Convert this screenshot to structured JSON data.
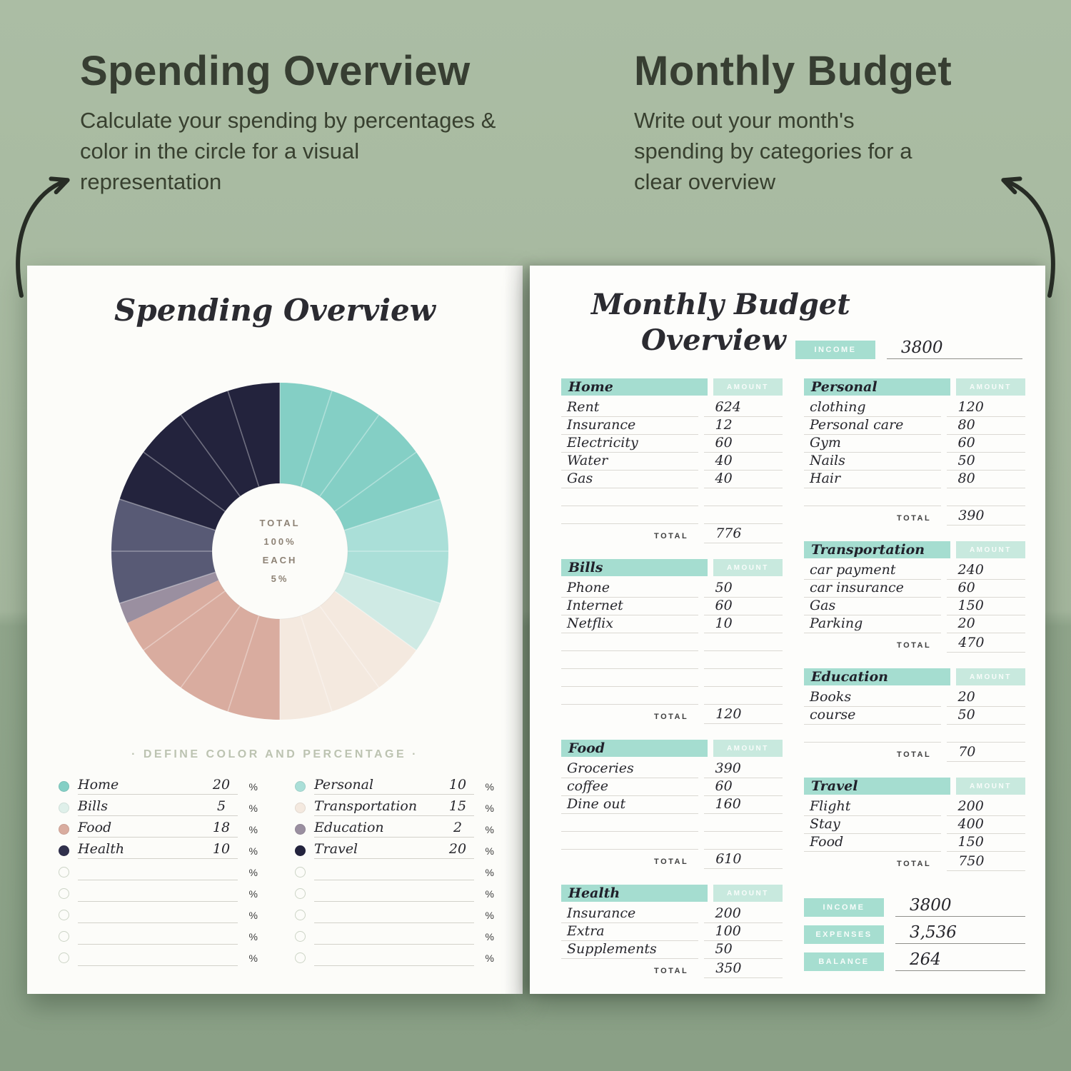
{
  "header_left": {
    "title": "Spending Overview",
    "subtitle": "Calculate your spending by percentages & color in the circle for a visual representation"
  },
  "header_right": {
    "title": "Monthly Budget",
    "subtitle": "Write out your month's spending by categories for a clear overview"
  },
  "left_page": {
    "title": "Spending Overview",
    "center_lines": [
      "TOTAL",
      "100%",
      "EACH",
      "5%"
    ],
    "define_label": "· DEFINE COLOR AND PERCENTAGE ·",
    "percent_sign": "%",
    "legend_columns": [
      {
        "rows": [
          {
            "label": "Home",
            "value": "20",
            "color": "#84cfc5"
          },
          {
            "label": "Bills",
            "value": "5",
            "color": "#dff0ea"
          },
          {
            "label": "Food",
            "value": "18",
            "color": "#d9ac9f"
          },
          {
            "label": "Health",
            "value": "10",
            "color": "#30304c"
          },
          {
            "label": "",
            "value": "",
            "color": ""
          },
          {
            "label": "",
            "value": "",
            "color": ""
          },
          {
            "label": "",
            "value": "",
            "color": ""
          },
          {
            "label": "",
            "value": "",
            "color": ""
          },
          {
            "label": "",
            "value": "",
            "color": ""
          }
        ]
      },
      {
        "rows": [
          {
            "label": "Personal",
            "value": "10",
            "color": "#aadfd8"
          },
          {
            "label": "Transportation",
            "value": "15",
            "color": "#f4e9df"
          },
          {
            "label": "Education",
            "value": "2",
            "color": "#9a8fa0"
          },
          {
            "label": "Travel",
            "value": "20",
            "color": "#23233d"
          },
          {
            "label": "",
            "value": "",
            "color": ""
          },
          {
            "label": "",
            "value": "",
            "color": ""
          },
          {
            "label": "",
            "value": "",
            "color": ""
          },
          {
            "label": "",
            "value": "",
            "color": ""
          },
          {
            "label": "",
            "value": "",
            "color": ""
          }
        ]
      }
    ]
  },
  "chart_data": {
    "type": "pie",
    "title": "Spending Overview",
    "categories": [
      "Home",
      "Personal",
      "Bills",
      "Transportation",
      "Food",
      "Education",
      "Health",
      "Travel"
    ],
    "values": [
      20,
      10,
      5,
      15,
      18,
      2,
      10,
      20
    ],
    "colors": [
      "#84cfc5",
      "#aadfd8",
      "#cfeae4",
      "#f4e9df",
      "#d9ac9f",
      "#9a8fa0",
      "#585a75",
      "#23233d"
    ],
    "units": "percent",
    "segments_grid": {
      "count": 20,
      "each_percent": 5
    },
    "center_text": [
      "TOTAL",
      "100%",
      "EACH",
      "5%"
    ],
    "legend_position": "below"
  },
  "right_page": {
    "title_line1": "Monthly Budget",
    "title_line2": "Overview",
    "amount_header": "AMOUNT",
    "total_label": "TOTAL",
    "income_top": {
      "label": "INCOME",
      "value": "3800"
    },
    "columns": [
      {
        "tables": [
          {
            "name": "Home",
            "rows": [
              [
                "Rent",
                "624"
              ],
              [
                "Insurance",
                "12"
              ],
              [
                "Electricity",
                "60"
              ],
              [
                "Water",
                "40"
              ],
              [
                "Gas",
                "40"
              ],
              [
                "",
                ""
              ],
              [
                "",
                ""
              ]
            ],
            "total": "776"
          },
          {
            "name": "Bills",
            "rows": [
              [
                "Phone",
                "50"
              ],
              [
                "Internet",
                "60"
              ],
              [
                "Netflix",
                "10"
              ],
              [
                "",
                ""
              ],
              [
                "",
                ""
              ],
              [
                "",
                ""
              ],
              [
                "",
                ""
              ]
            ],
            "total": "120"
          },
          {
            "name": "Food",
            "rows": [
              [
                "Groceries",
                "390"
              ],
              [
                "coffee",
                "60"
              ],
              [
                "Dine out",
                "160"
              ],
              [
                "",
                ""
              ],
              [
                "",
                ""
              ]
            ],
            "total": "610"
          },
          {
            "name": "Health",
            "rows": [
              [
                "Insurance",
                "200"
              ],
              [
                "Extra",
                "100"
              ],
              [
                "Supplements",
                "50"
              ]
            ],
            "total": "350"
          }
        ]
      },
      {
        "tables": [
          {
            "name": "Personal",
            "rows": [
              [
                "clothing",
                "120"
              ],
              [
                "Personal care",
                "80"
              ],
              [
                "Gym",
                "60"
              ],
              [
                "Nails",
                "50"
              ],
              [
                "Hair",
                "80"
              ],
              [
                "",
                ""
              ]
            ],
            "total": "390"
          },
          {
            "name": "Transportation",
            "rows": [
              [
                "car payment",
                "240"
              ],
              [
                "car insurance",
                "60"
              ],
              [
                "Gas",
                "150"
              ],
              [
                "Parking",
                "20"
              ]
            ],
            "total": "470"
          },
          {
            "name": "Education",
            "rows": [
              [
                "Books",
                "20"
              ],
              [
                "course",
                "50"
              ],
              [
                "",
                ""
              ]
            ],
            "total": "70"
          },
          {
            "name": "Travel",
            "rows": [
              [
                "Flight",
                "200"
              ],
              [
                "Stay",
                "400"
              ],
              [
                "Food",
                "150"
              ]
            ],
            "total": "750"
          }
        ]
      }
    ],
    "summary": [
      {
        "label": "INCOME",
        "value": "3800"
      },
      {
        "label": "EXPENSES",
        "value": "3,536"
      },
      {
        "label": "BALANCE",
        "value": "264"
      }
    ]
  }
}
